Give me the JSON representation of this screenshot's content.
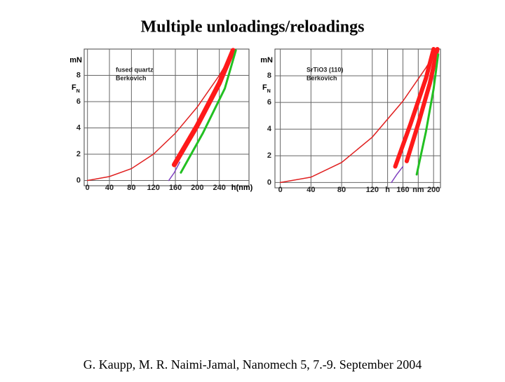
{
  "title": "Multiple unloadings/reloadings",
  "footer": "G. Kaupp, M. R. Naimi-Jamal, Nanomech 5, 7.-9. September 2004",
  "chart_data": [
    {
      "type": "line",
      "annotations": [
        "fused quartz",
        "Berkovich"
      ],
      "ylabel": "F",
      "ylabel_sub": "N",
      "yunit": "mN",
      "xlabel": "h(nm)",
      "xlim": [
        -6,
        294
      ],
      "ylim": [
        -0.4,
        10
      ],
      "xticks": [
        0,
        40,
        80,
        120,
        160,
        200,
        240
      ],
      "yticks": [
        0,
        2,
        4,
        6,
        8
      ],
      "grid": true,
      "series": [
        {
          "color": "#e02020",
          "width": 1.5,
          "x": [
            0,
            40,
            80,
            120,
            160,
            200,
            240,
            265
          ],
          "values": [
            0,
            0.3,
            0.9,
            2.0,
            3.6,
            5.6,
            8.0,
            9.8
          ]
        },
        {
          "color": "#ff1a1a",
          "width": 7,
          "x": [
            158,
            200,
            240,
            265
          ],
          "values": [
            1.2,
            4.2,
            7.4,
            9.9
          ]
        },
        {
          "color": "#22c022",
          "width": 3,
          "x": [
            170,
            210,
            250,
            270
          ],
          "values": [
            0.6,
            3.6,
            7.0,
            9.9
          ]
        },
        {
          "color": "#8040c0",
          "width": 1.5,
          "x": [
            148,
            158,
            168
          ],
          "values": [
            0,
            0.6,
            1.4
          ]
        }
      ]
    },
    {
      "type": "line",
      "annotations": [
        "SrTiO3 (110)",
        "Berkovich"
      ],
      "ylabel": "F",
      "ylabel_sub": "N",
      "yunit": "mN",
      "xlim": [
        -7,
        209
      ],
      "ylim": [
        -0.4,
        10
      ],
      "xticks": [
        0,
        40,
        80,
        120,
        {
          "value": 140,
          "label": "h"
        },
        160,
        {
          "value": 180,
          "label": "nm"
        },
        200
      ],
      "yticks": [
        0,
        2,
        4,
        6,
        8
      ],
      "grid": true,
      "series": [
        {
          "color": "#e02020",
          "width": 1.5,
          "x": [
            0,
            40,
            80,
            120,
            160,
            190,
            205
          ],
          "values": [
            0,
            0.4,
            1.5,
            3.4,
            6.1,
            8.6,
            10
          ]
        },
        {
          "color": "#ff1a1a",
          "width": 6,
          "x": [
            150,
            170,
            190,
            200
          ],
          "values": [
            1.2,
            4.4,
            7.8,
            10
          ]
        },
        {
          "color": "#ff1a1a",
          "width": 6,
          "x": [
            165,
            180,
            195,
            205
          ],
          "values": [
            1.6,
            4.4,
            7.4,
            10
          ]
        },
        {
          "color": "#22c022",
          "width": 3,
          "x": [
            178,
            190,
            200,
            206
          ],
          "values": [
            0.6,
            3.8,
            7.0,
            9.6
          ]
        },
        {
          "color": "#8040c0",
          "width": 1.5,
          "x": [
            145,
            152,
            160
          ],
          "values": [
            0,
            0.6,
            1.2
          ]
        }
      ]
    }
  ]
}
